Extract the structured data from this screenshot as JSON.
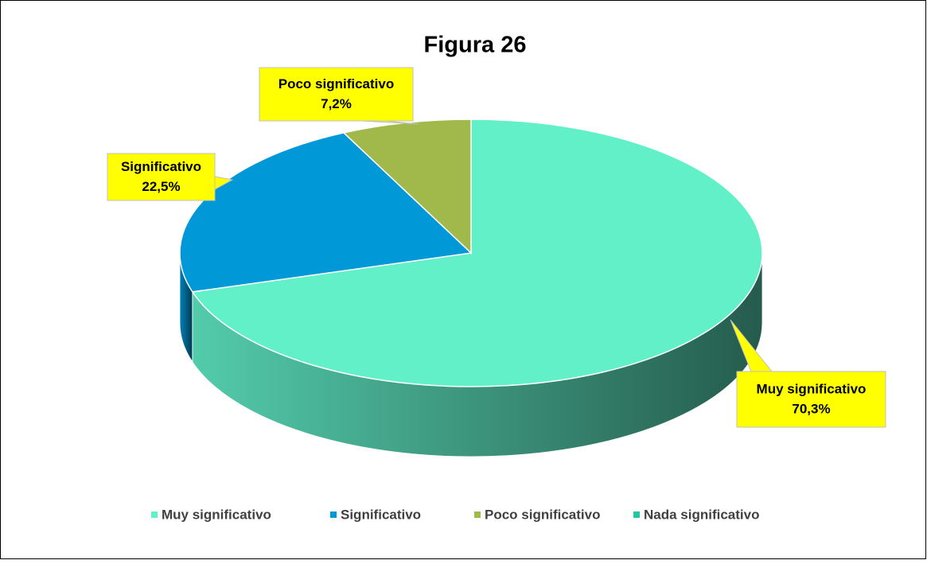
{
  "chart_data": {
    "type": "pie",
    "title": "Figura 26",
    "categories": [
      "Muy significativo",
      "Significativo",
      "Poco significativo",
      "Nada significativo"
    ],
    "values": [
      70.3,
      22.5,
      7.2,
      0
    ],
    "value_labels": [
      "70,3%",
      "22,5%",
      "7,2%",
      null
    ],
    "colors": [
      "#62F0C9",
      "#0098D6",
      "#A0B94A",
      "#20C9A0"
    ],
    "legend": "bottom",
    "style": "3d"
  }
}
